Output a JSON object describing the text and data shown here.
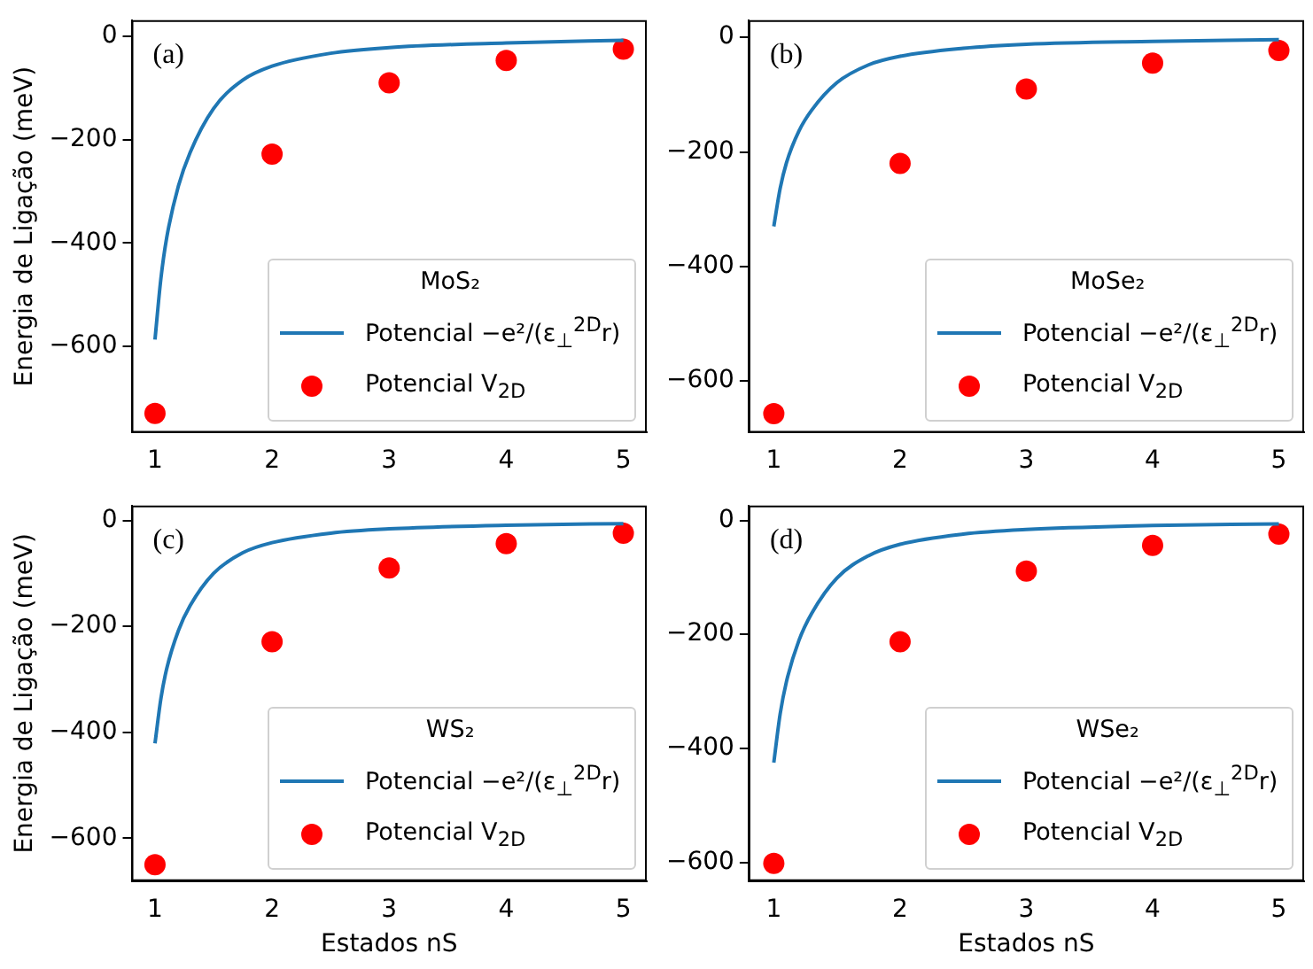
{
  "chart_data": [
    {
      "type": "line",
      "annotations": [
        "(a)"
      ],
      "ylabel": "Energia de Ligação (meV)",
      "legend_title": "MoS₂",
      "legend": "bottom right",
      "xlim": [
        0.8,
        5.2
      ],
      "xticks": [
        1,
        2,
        3,
        4,
        5
      ],
      "ylim": [
        -767,
        31
      ],
      "yticks": [
        -600,
        -400,
        -200,
        0
      ],
      "series": [
        {
          "name": "Potencial −e²/(ε$_{⊥}$$^{2D}$r)",
          "color": "#1f77b4",
          "marker": "none",
          "x": [
            1,
            1.05,
            1.1,
            1.2,
            1.3,
            1.5,
            1.75,
            2,
            2.5,
            3,
            4,
            5
          ],
          "values": [
            -587,
            -470,
            -390,
            -290,
            -225,
            -140,
            -85,
            -58,
            -33,
            -22,
            -13,
            -8
          ]
        },
        {
          "type": "scatter",
          "name": "Potencial V$_{2D}$",
          "color": "#ff0000",
          "marker": "circle",
          "x": [
            1,
            2,
            3,
            4,
            5
          ],
          "values": [
            -730,
            -228,
            -90,
            -47,
            -25
          ]
        }
      ]
    },
    {
      "type": "line",
      "annotations": [
        "(b)"
      ],
      "legend_title": "MoSe₂",
      "legend": "bottom right",
      "xlim": [
        0.8,
        5.2
      ],
      "xticks": [
        1,
        2,
        3,
        4,
        5
      ],
      "ylim": [
        -690,
        30
      ],
      "yticks": [
        -600,
        -400,
        -200,
        0
      ],
      "series": [
        {
          "name": "Potencial −e²/(ε$_{⊥}$$^{2D}$r)",
          "color": "#1f77b4",
          "marker": "none",
          "x": [
            1,
            1.05,
            1.1,
            1.2,
            1.3,
            1.5,
            1.75,
            2,
            2.5,
            3,
            4,
            5
          ],
          "values": [
            -330,
            -264,
            -219,
            -163,
            -127,
            -79,
            -48,
            -33,
            -19,
            -12,
            -7,
            -4
          ]
        },
        {
          "type": "scatter",
          "name": "Potencial V$_{2D}$",
          "color": "#ff0000",
          "marker": "circle",
          "x": [
            1,
            2,
            3,
            4,
            5
          ],
          "values": [
            -657,
            -220,
            -90,
            -45,
            -23
          ]
        }
      ]
    },
    {
      "type": "line",
      "annotations": [
        "(c)"
      ],
      "xlabel": "Estados nS",
      "ylabel": "Energia de Ligação (meV)",
      "legend_title": "WS₂",
      "legend": "bottom right",
      "xlim": [
        0.8,
        5.2
      ],
      "xticks": [
        1,
        2,
        3,
        4,
        5
      ],
      "ylim": [
        -681,
        28
      ],
      "yticks": [
        -600,
        -400,
        -200,
        0
      ],
      "series": [
        {
          "name": "Potencial −e²/(ε$_{⊥}$$^{2D}$r)",
          "color": "#1f77b4",
          "marker": "none",
          "x": [
            1,
            1.05,
            1.1,
            1.2,
            1.3,
            1.5,
            1.75,
            2,
            2.5,
            3,
            4,
            5
          ],
          "values": [
            -421,
            -337,
            -280,
            -208,
            -161,
            -100,
            -61,
            -42,
            -24,
            -16,
            -9,
            -6
          ]
        },
        {
          "type": "scatter",
          "name": "Potencial V$_{2D}$",
          "color": "#ff0000",
          "marker": "circle",
          "x": [
            1,
            2,
            3,
            4,
            5
          ],
          "values": [
            -650,
            -229,
            -90,
            -44,
            -24
          ]
        }
      ]
    },
    {
      "type": "line",
      "annotations": [
        "(d)"
      ],
      "xlabel": "Estados nS",
      "legend_title": "WSe₂",
      "legend": "bottom right",
      "xlim": [
        0.8,
        5.2
      ],
      "xticks": [
        1,
        2,
        3,
        4,
        5
      ],
      "ylim": [
        -633,
        26
      ],
      "yticks": [
        -600,
        -400,
        -200,
        0
      ],
      "series": [
        {
          "name": "Potencial −e²/(ε$_{⊥}$$^{2D}$r)",
          "color": "#1f77b4",
          "marker": "none",
          "x": [
            1,
            1.05,
            1.1,
            1.2,
            1.3,
            1.5,
            1.75,
            2,
            2.5,
            3,
            4,
            5
          ],
          "values": [
            -425,
            -340,
            -283,
            -210,
            -163,
            -101,
            -62,
            -42,
            -24,
            -16,
            -9,
            -6
          ]
        },
        {
          "type": "scatter",
          "name": "Potencial V$_{2D}$",
          "color": "#ff0000",
          "marker": "circle",
          "x": [
            1,
            2,
            3,
            4,
            5
          ],
          "values": [
            -602,
            -213,
            -89,
            -44,
            -24
          ]
        }
      ]
    }
  ]
}
